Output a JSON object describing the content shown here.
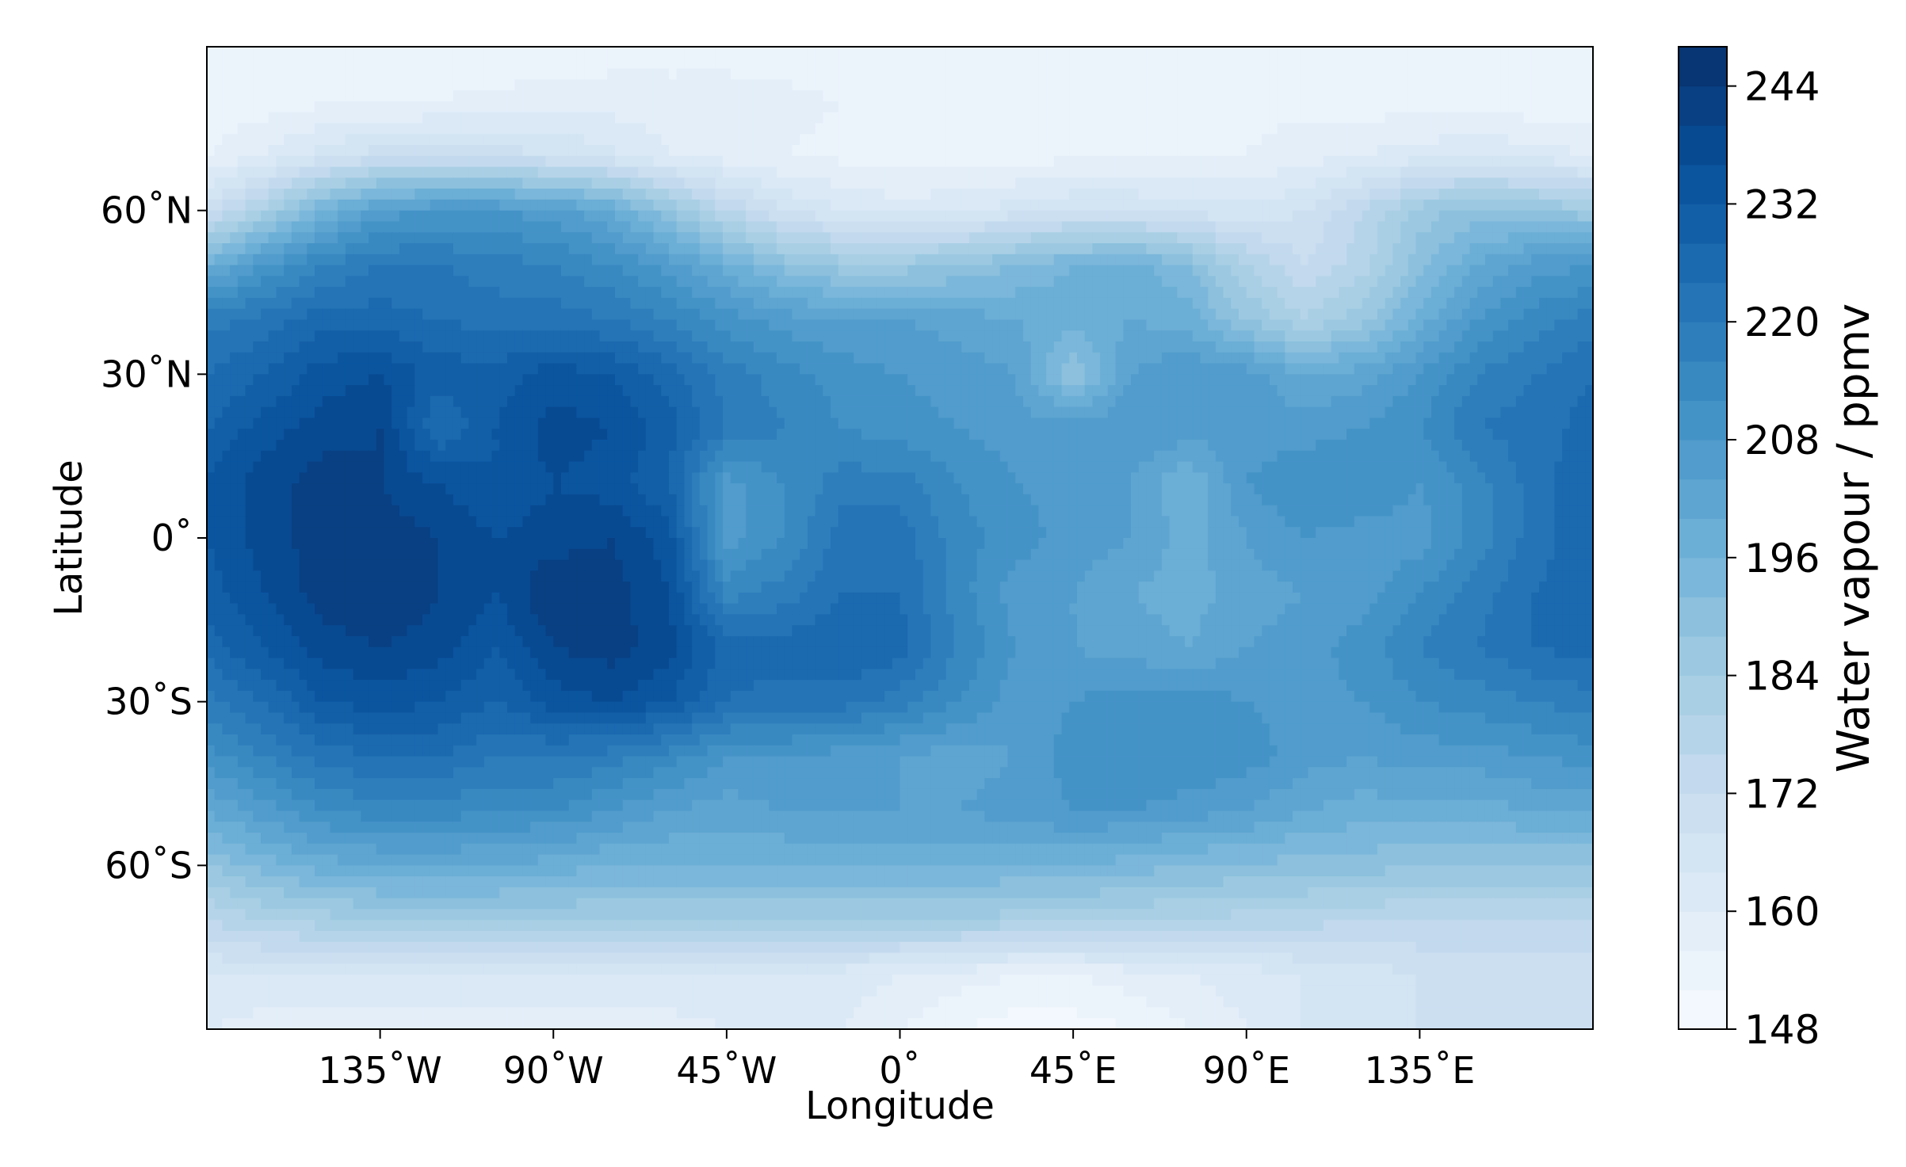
{
  "chart_data": {
    "type": "heatmap",
    "style": "filled contour map",
    "colormap": "Blues",
    "grid": false,
    "xlabel": "Longitude",
    "ylabel": "Latitude",
    "xlim": [
      -180,
      180
    ],
    "ylim": [
      -90,
      90
    ],
    "xticks": [
      {
        "value": -135,
        "label": "135˚W"
      },
      {
        "value": -90,
        "label": "90˚W"
      },
      {
        "value": -45,
        "label": "45˚W"
      },
      {
        "value": 0,
        "label": "0˚"
      },
      {
        "value": 45,
        "label": "45˚E"
      },
      {
        "value": 90,
        "label": "90˚E"
      },
      {
        "value": 135,
        "label": "135˚E"
      }
    ],
    "yticks": [
      {
        "value": 60,
        "label": "60˚N"
      },
      {
        "value": 30,
        "label": "30˚N"
      },
      {
        "value": 0,
        "label": "0˚"
      },
      {
        "value": -30,
        "label": "30˚S"
      },
      {
        "value": -60,
        "label": "60˚S"
      }
    ],
    "colorbar": {
      "label": "Water vapour / ppmv",
      "range": [
        148,
        248
      ],
      "levels": 25,
      "ticks": [
        148,
        160,
        172,
        184,
        196,
        208,
        220,
        232,
        244
      ]
    },
    "x": [
      -180,
      -165,
      -150,
      -135,
      -120,
      -105,
      -90,
      -75,
      -60,
      -45,
      -30,
      -15,
      0,
      15,
      30,
      45,
      60,
      75,
      90,
      105,
      120,
      135,
      150,
      165,
      180
    ],
    "y": [
      90,
      80,
      70,
      60,
      50,
      40,
      30,
      20,
      10,
      0,
      -10,
      -20,
      -30,
      -40,
      -50,
      -60,
      -70,
      -80,
      -90
    ],
    "z": [
      [
        152,
        152,
        153,
        153,
        153,
        153,
        153,
        154,
        154,
        154,
        154,
        153,
        152,
        152,
        152,
        152,
        153,
        153,
        153,
        153,
        152,
        152,
        152,
        152,
        152
      ],
      [
        153,
        154,
        155,
        155,
        156,
        157,
        158,
        158,
        158,
        158,
        157,
        156,
        155,
        154,
        154,
        154,
        155,
        155,
        155,
        155,
        154,
        154,
        154,
        153,
        153
      ],
      [
        156,
        160,
        166,
        170,
        170,
        170,
        168,
        165,
        160,
        158,
        156,
        155,
        154,
        154,
        154,
        155,
        155,
        156,
        156,
        158,
        160,
        162,
        164,
        162,
        160
      ],
      [
        170,
        182,
        196,
        206,
        208,
        208,
        206,
        200,
        188,
        176,
        168,
        164,
        162,
        163,
        166,
        168,
        168,
        166,
        165,
        168,
        176,
        186,
        190,
        188,
        185
      ],
      [
        198,
        208,
        216,
        220,
        220,
        218,
        216,
        212,
        206,
        198,
        190,
        186,
        186,
        188,
        192,
        196,
        198,
        192,
        180,
        172,
        178,
        190,
        200,
        206,
        208
      ],
      [
        218,
        222,
        226,
        226,
        224,
        222,
        222,
        220,
        216,
        210,
        206,
        204,
        204,
        202,
        200,
        198,
        200,
        198,
        188,
        180,
        186,
        198,
        208,
        214,
        218
      ],
      [
        224,
        228,
        234,
        236,
        230,
        230,
        234,
        232,
        226,
        218,
        214,
        210,
        208,
        206,
        204,
        188,
        204,
        208,
        206,
        200,
        202,
        208,
        216,
        220,
        224
      ],
      [
        228,
        234,
        238,
        240,
        224,
        232,
        238,
        236,
        230,
        220,
        216,
        212,
        210,
        208,
        206,
        206,
        208,
        206,
        206,
        206,
        208,
        212,
        220,
        222,
        226
      ],
      [
        232,
        238,
        242,
        240,
        236,
        232,
        236,
        234,
        228,
        206,
        212,
        218,
        218,
        212,
        208,
        206,
        204,
        196,
        208,
        212,
        212,
        208,
        214,
        222,
        228
      ],
      [
        232,
        238,
        242,
        242,
        240,
        236,
        238,
        240,
        234,
        206,
        212,
        222,
        222,
        214,
        210,
        206,
        204,
        198,
        204,
        208,
        206,
        206,
        214,
        222,
        228
      ],
      [
        230,
        236,
        242,
        244,
        240,
        236,
        244,
        242,
        236,
        214,
        218,
        224,
        224,
        214,
        206,
        204,
        200,
        198,
        202,
        204,
        206,
        212,
        218,
        224,
        226
      ],
      [
        226,
        232,
        238,
        240,
        238,
        232,
        240,
        242,
        238,
        226,
        226,
        228,
        226,
        216,
        208,
        204,
        202,
        200,
        204,
        206,
        210,
        216,
        220,
        224,
        226
      ],
      [
        218,
        224,
        232,
        234,
        232,
        228,
        234,
        236,
        232,
        224,
        222,
        222,
        218,
        212,
        206,
        208,
        210,
        210,
        208,
        206,
        208,
        212,
        214,
        216,
        218
      ],
      [
        210,
        216,
        222,
        224,
        224,
        220,
        220,
        218,
        214,
        208,
        208,
        206,
        204,
        202,
        204,
        210,
        212,
        212,
        210,
        206,
        204,
        206,
        206,
        208,
        210
      ],
      [
        200,
        206,
        212,
        214,
        214,
        212,
        212,
        208,
        204,
        202,
        204,
        204,
        204,
        204,
        206,
        208,
        208,
        206,
        204,
        200,
        198,
        198,
        198,
        200,
        200
      ],
      [
        188,
        194,
        198,
        200,
        200,
        200,
        198,
        196,
        196,
        196,
        196,
        196,
        196,
        196,
        196,
        196,
        194,
        192,
        192,
        190,
        190,
        188,
        188,
        188,
        188
      ],
      [
        176,
        180,
        182,
        184,
        184,
        184,
        184,
        184,
        184,
        184,
        184,
        184,
        184,
        184,
        182,
        182,
        180,
        180,
        178,
        178,
        176,
        176,
        176,
        176,
        176
      ],
      [
        164,
        164,
        164,
        164,
        164,
        164,
        164,
        164,
        164,
        164,
        164,
        162,
        160,
        158,
        156,
        156,
        158,
        160,
        162,
        164,
        166,
        168,
        170,
        170,
        170
      ],
      [
        160,
        158,
        158,
        158,
        158,
        158,
        158,
        158,
        158,
        160,
        162,
        160,
        156,
        152,
        150,
        150,
        152,
        156,
        160,
        164,
        166,
        168,
        170,
        170,
        168
      ]
    ]
  }
}
